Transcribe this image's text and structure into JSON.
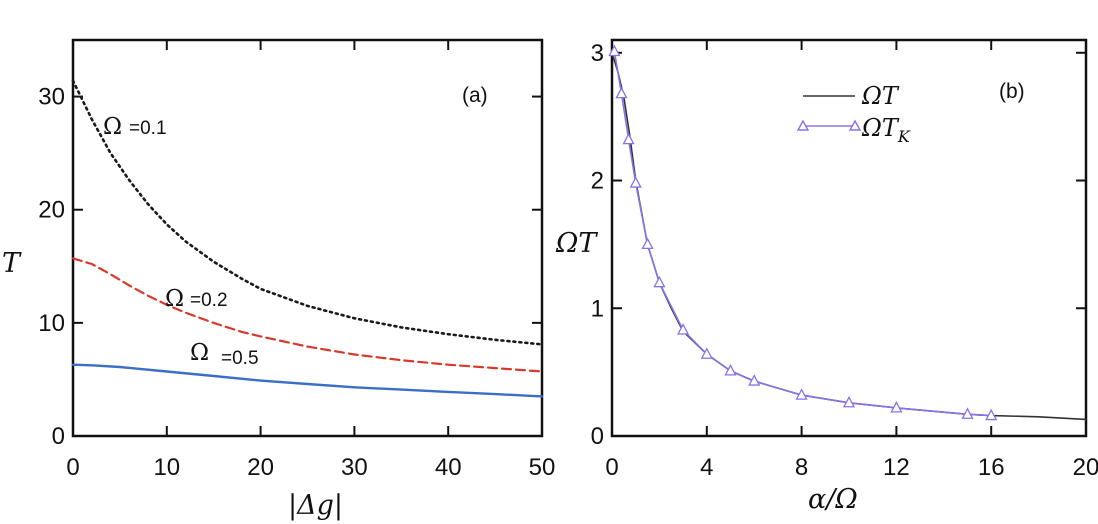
{
  "chart_data": [
    {
      "type": "line",
      "panel_label": "(a)",
      "xlabel": "|Δg|",
      "ylabel": "T",
      "xlim": [
        0,
        50
      ],
      "ylim": [
        0,
        35
      ],
      "xticks": [
        "0",
        "10",
        "20",
        "30",
        "40",
        "50"
      ],
      "yticks": [
        "0",
        "10",
        "20",
        "30"
      ],
      "grid": false,
      "series": [
        {
          "name": "Ω=0.1",
          "omega_symbol": "Ω",
          "value_text": "=0.1",
          "style": "dotted",
          "color": "#1a1a1a",
          "x": [
            0,
            2,
            4,
            6,
            8,
            10,
            12,
            15,
            18,
            20,
            25,
            30,
            35,
            40,
            45,
            50
          ],
          "y": [
            31.4,
            28.0,
            25.0,
            22.6,
            20.5,
            18.7,
            17.2,
            15.4,
            13.9,
            13.0,
            11.5,
            10.4,
            9.6,
            9.0,
            8.5,
            8.1
          ]
        },
        {
          "name": "Ω=0.2",
          "omega_symbol": "Ω",
          "value_text": "=0.2",
          "style": "dashed",
          "color": "#d83a2a",
          "x": [
            0,
            2,
            4,
            6,
            8,
            10,
            12,
            15,
            18,
            20,
            25,
            30,
            35,
            40,
            45,
            50
          ],
          "y": [
            15.7,
            15.2,
            14.3,
            13.3,
            12.4,
            11.6,
            10.9,
            10.0,
            9.2,
            8.8,
            7.9,
            7.2,
            6.7,
            6.3,
            6.0,
            5.7
          ]
        },
        {
          "name": "Ω=0.5",
          "omega_symbol": "Ω",
          "value_text": "=0.5",
          "style": "solid",
          "color": "#3a6fc9",
          "x": [
            0,
            2,
            5,
            10,
            15,
            20,
            25,
            30,
            35,
            40,
            45,
            50
          ],
          "y": [
            6.3,
            6.25,
            6.1,
            5.7,
            5.3,
            4.9,
            4.6,
            4.3,
            4.1,
            3.9,
            3.7,
            3.5
          ]
        }
      ]
    },
    {
      "type": "line",
      "panel_label": "(b)",
      "xlabel": "α/Ω",
      "ylabel": "ΩT",
      "xlim": [
        0,
        20
      ],
      "ylim": [
        0,
        3.1
      ],
      "xticks": [
        "0",
        "4",
        "8",
        "12",
        "16",
        "20"
      ],
      "yticks": [
        "0",
        "1",
        "2",
        "3"
      ],
      "grid": false,
      "legend_position": "top-center",
      "series": [
        {
          "name": "ΩT",
          "legend_main": "ΩT",
          "legend_sub": "",
          "style": "solid",
          "color": "#333333",
          "x": [
            0,
            0.25,
            0.5,
            0.75,
            1,
            1.5,
            2,
            2.5,
            3,
            4,
            5,
            6,
            8,
            10,
            12,
            15,
            16,
            18,
            20
          ],
          "y": [
            3.0,
            2.85,
            2.65,
            2.35,
            2.0,
            1.5,
            1.2,
            1.0,
            0.82,
            0.64,
            0.51,
            0.43,
            0.32,
            0.26,
            0.22,
            0.17,
            0.16,
            0.15,
            0.13
          ]
        },
        {
          "name": "ΩT_K",
          "legend_main": "ΩT",
          "legend_sub": "K",
          "style": "solid",
          "marker": "open-triangle",
          "color": "#8a72e8",
          "x": [
            0.1,
            0.4,
            0.7,
            1.0,
            1.5,
            2.0,
            3.0,
            4.0,
            5.0,
            6.0,
            8.0,
            10.0,
            12.0,
            15.0,
            16.0
          ],
          "y": [
            3.01,
            2.68,
            2.32,
            1.98,
            1.5,
            1.2,
            0.83,
            0.64,
            0.51,
            0.43,
            0.32,
            0.26,
            0.22,
            0.17,
            0.16
          ]
        }
      ]
    }
  ]
}
